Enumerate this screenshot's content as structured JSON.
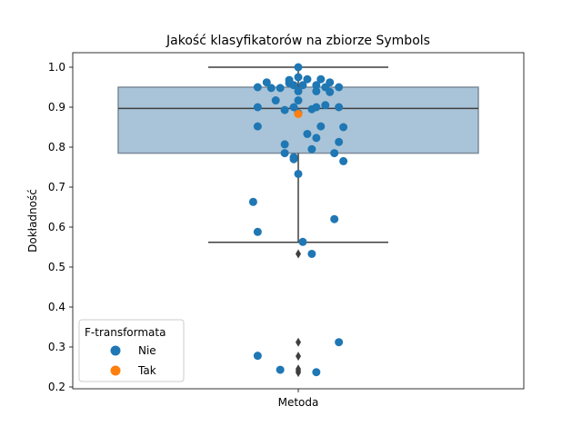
{
  "chart_data": {
    "type": "box+swarm",
    "title": "Jakość klasyfikatorów na zbiorze Symbols",
    "xlabel": "",
    "ylabel": "Dokładność",
    "category": "Metoda",
    "ylim": [
      0.2,
      1.0
    ],
    "yticks": [
      "0.2",
      "0.3",
      "0.4",
      "0.5",
      "0.6",
      "0.7",
      "0.8",
      "0.9",
      "1.0"
    ],
    "box": {
      "q1": 0.785,
      "median": 0.897,
      "q3": 0.95,
      "whisker_low": 0.562,
      "whisker_high": 1.0,
      "outliers": [
        0.533,
        0.312,
        0.277,
        0.245,
        0.24,
        0.236
      ],
      "color": "#a9c4d8"
    },
    "legend": {
      "title": "F-transformata",
      "position": "lower-left",
      "entries": [
        {
          "label": "Nie",
          "color": "#1f77b4"
        },
        {
          "label": "Tak",
          "color": "#ff7f0e"
        }
      ]
    },
    "series": [
      {
        "name": "Nie",
        "color": "#1f77b4",
        "points": [
          {
            "offset": 0.0,
            "y": 1.0
          },
          {
            "offset": -0.09,
            "y": 0.95
          },
          {
            "offset": -0.07,
            "y": 0.962
          },
          {
            "offset": -0.06,
            "y": 0.948
          },
          {
            "offset": -0.04,
            "y": 0.948
          },
          {
            "offset": -0.02,
            "y": 0.968
          },
          {
            "offset": -0.01,
            "y": 0.955
          },
          {
            "offset": 0.01,
            "y": 0.955
          },
          {
            "offset": 0.0,
            "y": 0.975
          },
          {
            "offset": -0.02,
            "y": 0.96
          },
          {
            "offset": 0.02,
            "y": 0.97
          },
          {
            "offset": 0.0,
            "y": 0.94
          },
          {
            "offset": 0.05,
            "y": 0.97
          },
          {
            "offset": 0.07,
            "y": 0.962
          },
          {
            "offset": 0.04,
            "y": 0.955
          },
          {
            "offset": 0.06,
            "y": 0.95
          },
          {
            "offset": 0.09,
            "y": 0.95
          },
          {
            "offset": 0.04,
            "y": 0.94
          },
          {
            "offset": 0.07,
            "y": 0.938
          },
          {
            "offset": -0.05,
            "y": 0.917
          },
          {
            "offset": 0.0,
            "y": 0.917
          },
          {
            "offset": -0.09,
            "y": 0.9
          },
          {
            "offset": -0.03,
            "y": 0.893
          },
          {
            "offset": -0.01,
            "y": 0.9
          },
          {
            "offset": 0.03,
            "y": 0.895
          },
          {
            "offset": 0.04,
            "y": 0.9
          },
          {
            "offset": 0.06,
            "y": 0.905
          },
          {
            "offset": 0.09,
            "y": 0.9
          },
          {
            "offset": 0.0,
            "y": 0.885
          },
          {
            "offset": -0.09,
            "y": 0.852
          },
          {
            "offset": 0.05,
            "y": 0.852
          },
          {
            "offset": 0.1,
            "y": 0.85
          },
          {
            "offset": 0.02,
            "y": 0.833
          },
          {
            "offset": 0.04,
            "y": 0.823
          },
          {
            "offset": 0.09,
            "y": 0.813
          },
          {
            "offset": -0.03,
            "y": 0.807
          },
          {
            "offset": 0.03,
            "y": 0.795
          },
          {
            "offset": -0.03,
            "y": 0.785
          },
          {
            "offset": 0.08,
            "y": 0.785
          },
          {
            "offset": -0.01,
            "y": 0.775
          },
          {
            "offset": -0.01,
            "y": 0.77
          },
          {
            "offset": 0.1,
            "y": 0.765
          },
          {
            "offset": 0.0,
            "y": 0.733
          },
          {
            "offset": -0.1,
            "y": 0.663
          },
          {
            "offset": 0.08,
            "y": 0.62
          },
          {
            "offset": -0.09,
            "y": 0.588
          },
          {
            "offset": 0.01,
            "y": 0.563
          },
          {
            "offset": 0.03,
            "y": 0.533
          },
          {
            "offset": 0.09,
            "y": 0.312
          },
          {
            "offset": -0.09,
            "y": 0.278
          },
          {
            "offset": -0.04,
            "y": 0.243
          },
          {
            "offset": 0.04,
            "y": 0.237
          }
        ]
      },
      {
        "name": "Tak",
        "color": "#ff7f0e",
        "points": [
          {
            "offset": 0.0,
            "y": 0.883
          }
        ]
      }
    ]
  }
}
